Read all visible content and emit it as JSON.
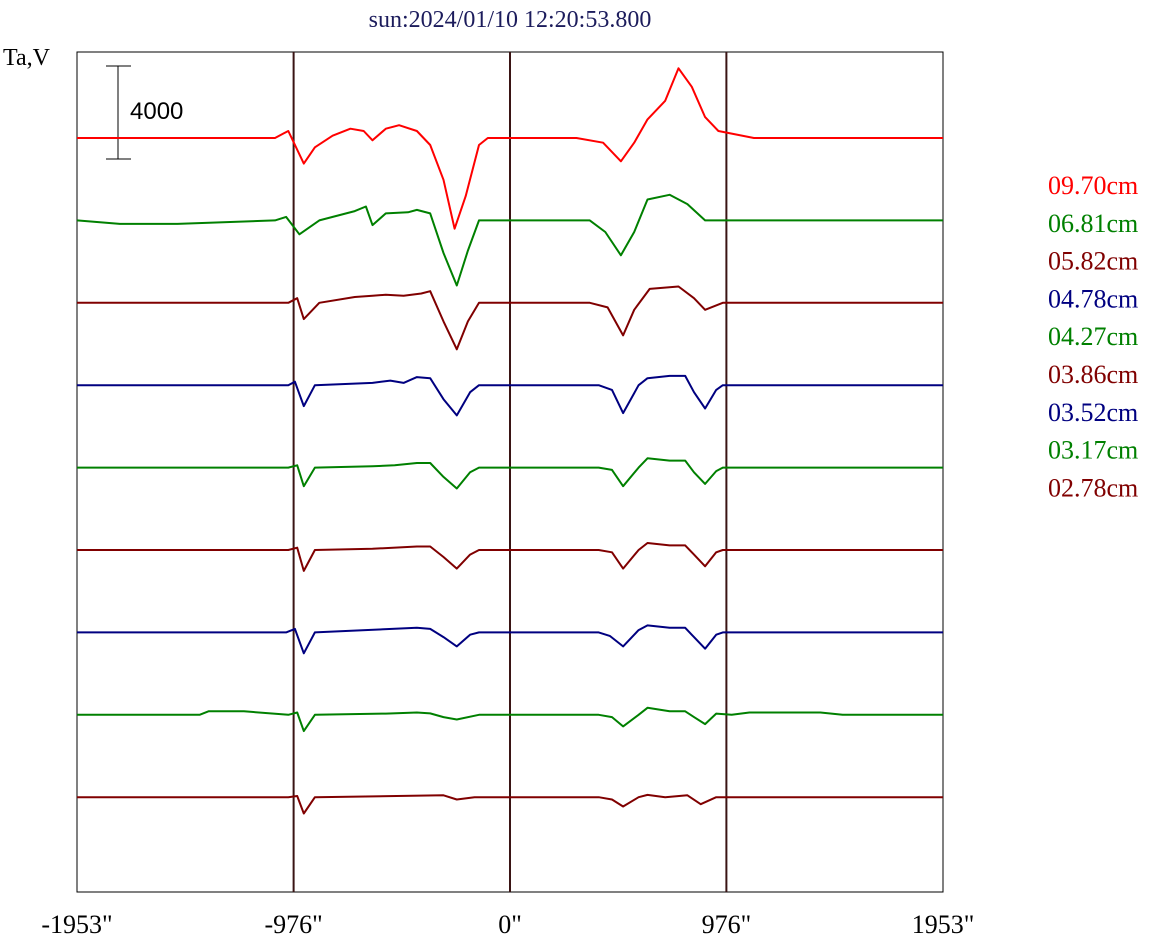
{
  "chart_data": {
    "type": "line",
    "title": "sun:2024/01/10 12:20:53.800",
    "ylabel": "Ta,V",
    "scale_bar_label": "4000",
    "x_ticks": [
      "-1953\"",
      "-976\"",
      "0\"",
      "976\"",
      "1953\""
    ],
    "xlim": [
      -1953,
      1953
    ],
    "vertical_lines_at": [
      -976,
      0,
      976
    ],
    "series": [
      {
        "name": "09.70cm",
        "color": "#ff0000",
        "baseline": 0,
        "profile": [
          [
            -1953,
            0
          ],
          [
            -1060,
            0
          ],
          [
            -1020,
            200
          ],
          [
            -1000,
            300
          ],
          [
            -930,
            -1100
          ],
          [
            -880,
            -400
          ],
          [
            -800,
            100
          ],
          [
            -720,
            400
          ],
          [
            -660,
            300
          ],
          [
            -620,
            -100
          ],
          [
            -560,
            400
          ],
          [
            -500,
            550
          ],
          [
            -420,
            300
          ],
          [
            -360,
            -300
          ],
          [
            -300,
            -1800
          ],
          [
            -250,
            -3900
          ],
          [
            -200,
            -2500
          ],
          [
            -140,
            -300
          ],
          [
            -100,
            0
          ],
          [
            300,
            0
          ],
          [
            420,
            -200
          ],
          [
            500,
            -1000
          ],
          [
            560,
            -200
          ],
          [
            620,
            800
          ],
          [
            700,
            1600
          ],
          [
            760,
            3000
          ],
          [
            820,
            2200
          ],
          [
            880,
            900
          ],
          [
            940,
            300
          ],
          [
            1100,
            0
          ],
          [
            1953,
            0
          ]
        ]
      },
      {
        "name": "06.81cm",
        "color": "#008000",
        "baseline": 0,
        "profile": [
          [
            -1953,
            0
          ],
          [
            -1760,
            -150
          ],
          [
            -1500,
            -150
          ],
          [
            -1060,
            0
          ],
          [
            -1010,
            150
          ],
          [
            -950,
            -600
          ],
          [
            -860,
            0
          ],
          [
            -700,
            400
          ],
          [
            -650,
            600
          ],
          [
            -620,
            -200
          ],
          [
            -560,
            300
          ],
          [
            -460,
            350
          ],
          [
            -420,
            450
          ],
          [
            -360,
            300
          ],
          [
            -300,
            -1400
          ],
          [
            -240,
            -2800
          ],
          [
            -190,
            -1300
          ],
          [
            -140,
            0
          ],
          [
            360,
            0
          ],
          [
            430,
            -500
          ],
          [
            500,
            -1500
          ],
          [
            560,
            -500
          ],
          [
            620,
            900
          ],
          [
            720,
            1100
          ],
          [
            800,
            700
          ],
          [
            880,
            0
          ],
          [
            1953,
            0
          ]
        ]
      },
      {
        "name": "05.82cm",
        "color": "#800000",
        "baseline": 0,
        "profile": [
          [
            -1953,
            0
          ],
          [
            -1000,
            0
          ],
          [
            -960,
            200
          ],
          [
            -930,
            -700
          ],
          [
            -860,
            0
          ],
          [
            -700,
            250
          ],
          [
            -620,
            300
          ],
          [
            -560,
            350
          ],
          [
            -480,
            300
          ],
          [
            -400,
            400
          ],
          [
            -360,
            500
          ],
          [
            -300,
            -800
          ],
          [
            -240,
            -2000
          ],
          [
            -190,
            -800
          ],
          [
            -140,
            0
          ],
          [
            360,
            0
          ],
          [
            440,
            -200
          ],
          [
            510,
            -1400
          ],
          [
            560,
            -300
          ],
          [
            630,
            600
          ],
          [
            760,
            700
          ],
          [
            830,
            200
          ],
          [
            880,
            -300
          ],
          [
            960,
            0
          ],
          [
            1953,
            0
          ]
        ]
      },
      {
        "name": "04.78cm",
        "color": "#000080",
        "baseline": 0,
        "profile": [
          [
            -1953,
            0
          ],
          [
            -1000,
            0
          ],
          [
            -970,
            150
          ],
          [
            -930,
            -900
          ],
          [
            -880,
            0
          ],
          [
            -620,
            100
          ],
          [
            -540,
            200
          ],
          [
            -480,
            100
          ],
          [
            -420,
            350
          ],
          [
            -360,
            300
          ],
          [
            -300,
            -600
          ],
          [
            -240,
            -1300
          ],
          [
            -180,
            -300
          ],
          [
            -140,
            0
          ],
          [
            400,
            0
          ],
          [
            460,
            -200
          ],
          [
            510,
            -1200
          ],
          [
            580,
            0
          ],
          [
            620,
            300
          ],
          [
            720,
            400
          ],
          [
            790,
            400
          ],
          [
            830,
            -300
          ],
          [
            880,
            -1000
          ],
          [
            930,
            -200
          ],
          [
            960,
            0
          ],
          [
            1953,
            0
          ]
        ]
      },
      {
        "name": "04.27cm",
        "color": "#008000",
        "baseline": 0,
        "profile": [
          [
            -1953,
            0
          ],
          [
            -1000,
            0
          ],
          [
            -960,
            100
          ],
          [
            -930,
            -800
          ],
          [
            -880,
            0
          ],
          [
            -620,
            60
          ],
          [
            -520,
            100
          ],
          [
            -420,
            200
          ],
          [
            -360,
            200
          ],
          [
            -300,
            -400
          ],
          [
            -240,
            -900
          ],
          [
            -180,
            -200
          ],
          [
            -140,
            0
          ],
          [
            400,
            0
          ],
          [
            460,
            -100
          ],
          [
            510,
            -800
          ],
          [
            580,
            0
          ],
          [
            620,
            400
          ],
          [
            720,
            300
          ],
          [
            790,
            300
          ],
          [
            830,
            -200
          ],
          [
            880,
            -700
          ],
          [
            930,
            -150
          ],
          [
            960,
            0
          ],
          [
            1953,
            0
          ]
        ]
      },
      {
        "name": "03.86cm",
        "color": "#800000",
        "baseline": 0,
        "profile": [
          [
            -1953,
            0
          ],
          [
            -1000,
            0
          ],
          [
            -960,
            100
          ],
          [
            -930,
            -900
          ],
          [
            -880,
            0
          ],
          [
            -620,
            50
          ],
          [
            -420,
            150
          ],
          [
            -360,
            150
          ],
          [
            -300,
            -300
          ],
          [
            -240,
            -800
          ],
          [
            -180,
            -200
          ],
          [
            -140,
            0
          ],
          [
            400,
            0
          ],
          [
            460,
            -100
          ],
          [
            510,
            -800
          ],
          [
            580,
            0
          ],
          [
            620,
            300
          ],
          [
            720,
            200
          ],
          [
            790,
            200
          ],
          [
            830,
            -200
          ],
          [
            880,
            -700
          ],
          [
            930,
            -100
          ],
          [
            960,
            0
          ],
          [
            1953,
            0
          ]
        ]
      },
      {
        "name": "03.52cm",
        "color": "#000080",
        "baseline": 0,
        "profile": [
          [
            -1953,
            0
          ],
          [
            -1010,
            0
          ],
          [
            -970,
            150
          ],
          [
            -930,
            -900
          ],
          [
            -880,
            0
          ],
          [
            -420,
            200
          ],
          [
            -360,
            150
          ],
          [
            -300,
            -200
          ],
          [
            -240,
            -600
          ],
          [
            -180,
            -100
          ],
          [
            -140,
            0
          ],
          [
            400,
            0
          ],
          [
            450,
            -150
          ],
          [
            510,
            -600
          ],
          [
            580,
            100
          ],
          [
            620,
            300
          ],
          [
            720,
            200
          ],
          [
            790,
            200
          ],
          [
            830,
            -200
          ],
          [
            880,
            -700
          ],
          [
            930,
            -100
          ],
          [
            960,
            0
          ],
          [
            1953,
            0
          ]
        ]
      },
      {
        "name": "03.17cm",
        "color": "#008000",
        "baseline": 0,
        "profile": [
          [
            -1953,
            0
          ],
          [
            -1400,
            0
          ],
          [
            -1360,
            150
          ],
          [
            -1200,
            150
          ],
          [
            -1000,
            0
          ],
          [
            -960,
            100
          ],
          [
            -930,
            -700
          ],
          [
            -880,
            0
          ],
          [
            -560,
            50
          ],
          [
            -420,
            100
          ],
          [
            -360,
            60
          ],
          [
            -300,
            -100
          ],
          [
            -240,
            -200
          ],
          [
            -140,
            0
          ],
          [
            400,
            0
          ],
          [
            460,
            -100
          ],
          [
            510,
            -500
          ],
          [
            580,
            0
          ],
          [
            620,
            300
          ],
          [
            720,
            150
          ],
          [
            790,
            150
          ],
          [
            830,
            -100
          ],
          [
            880,
            -400
          ],
          [
            930,
            50
          ],
          [
            1000,
            0
          ],
          [
            1080,
            100
          ],
          [
            1400,
            100
          ],
          [
            1500,
            0
          ],
          [
            1953,
            0
          ]
        ]
      },
      {
        "name": "02.78cm",
        "color": "#800000",
        "baseline": 0,
        "profile": [
          [
            -1953,
            0
          ],
          [
            -1000,
            0
          ],
          [
            -960,
            50
          ],
          [
            -930,
            -700
          ],
          [
            -880,
            0
          ],
          [
            -300,
            80
          ],
          [
            -240,
            -100
          ],
          [
            -160,
            0
          ],
          [
            400,
            0
          ],
          [
            460,
            -100
          ],
          [
            510,
            -400
          ],
          [
            580,
            0
          ],
          [
            620,
            100
          ],
          [
            700,
            0
          ],
          [
            800,
            80
          ],
          [
            860,
            -300
          ],
          [
            930,
            0
          ],
          [
            1953,
            0
          ]
        ]
      }
    ]
  }
}
